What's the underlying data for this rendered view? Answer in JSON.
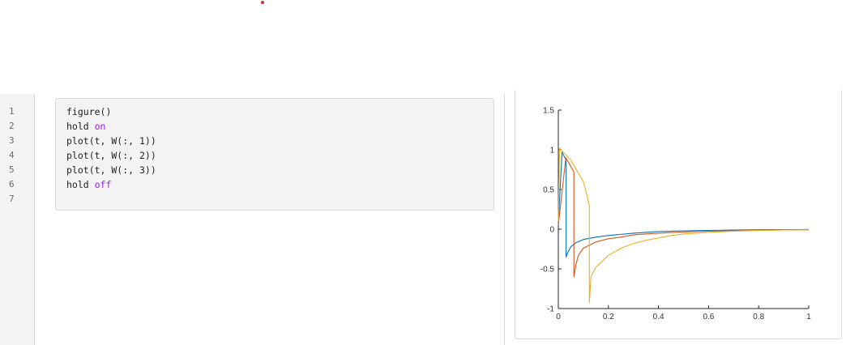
{
  "editor": {
    "line_numbers": [
      "1",
      "2",
      "3",
      "4",
      "5",
      "6",
      "7"
    ],
    "code_lines": [
      {
        "text": "figure()",
        "keyword": ""
      },
      {
        "text": "hold ",
        "keyword": "on"
      },
      {
        "text": "plot(t, W(:, 1))",
        "keyword": ""
      },
      {
        "text": "plot(t, W(:, 2))",
        "keyword": ""
      },
      {
        "text": "plot(t, W(:, 3))",
        "keyword": ""
      },
      {
        "text": "hold ",
        "keyword": "off"
      },
      {
        "text": "",
        "keyword": ""
      }
    ]
  },
  "chart_data": {
    "type": "line",
    "title": "",
    "xlabel": "",
    "ylabel": "",
    "xlim": [
      0,
      1
    ],
    "ylim": [
      -1,
      1.5
    ],
    "xticks": [
      0,
      0.2,
      0.4,
      0.6,
      0.8,
      1
    ],
    "xtick_labels": [
      "0",
      "0.2",
      "0.4",
      "0.6",
      "0.8",
      "1"
    ],
    "yticks": [
      -1,
      -0.5,
      0,
      0.5,
      1,
      1.5
    ],
    "ytick_labels": [
      "-1",
      "-0.5",
      "0",
      "0.5",
      "1",
      "1.5"
    ],
    "grid": false,
    "legend": "none",
    "series": [
      {
        "color": "#0072BD",
        "x": [
          0,
          0.015,
          0.031,
          0.031,
          0.037,
          0.05,
          0.07,
          0.1,
          0.15,
          0.2,
          0.3,
          0.4,
          0.5,
          0.6,
          0.7,
          0.8,
          0.9,
          1.0
        ],
        "y": [
          0.08,
          0.97,
          0.87,
          -0.35,
          -0.3,
          -0.22,
          -0.17,
          -0.13,
          -0.1,
          -0.08,
          -0.05,
          -0.03,
          -0.02,
          -0.015,
          -0.01,
          -0.007,
          -0.005,
          -0.004
        ]
      },
      {
        "color": "#D95319",
        "x": [
          0,
          0.03,
          0.062,
          0.062,
          0.07,
          0.08,
          0.1,
          0.15,
          0.2,
          0.25,
          0.3,
          0.4,
          0.5,
          0.6,
          0.7,
          0.8,
          0.9,
          1.0
        ],
        "y": [
          0.05,
          0.9,
          0.72,
          -0.6,
          -0.45,
          -0.33,
          -0.24,
          -0.16,
          -0.12,
          -0.1,
          -0.07,
          -0.05,
          -0.035,
          -0.025,
          -0.02,
          -0.015,
          -0.01,
          -0.008
        ]
      },
      {
        "color": "#EDB120",
        "x": [
          0,
          0.005,
          0.05,
          0.1,
          0.124,
          0.124,
          0.13,
          0.15,
          0.2,
          0.25,
          0.3,
          0.35,
          0.4,
          0.45,
          0.5,
          0.6,
          0.7,
          0.8,
          0.9,
          1.0
        ],
        "y": [
          0.1,
          1.02,
          0.87,
          0.6,
          0.3,
          -0.93,
          -0.6,
          -0.48,
          -0.33,
          -0.24,
          -0.18,
          -0.14,
          -0.11,
          -0.08,
          -0.06,
          -0.04,
          -0.025,
          -0.015,
          -0.01,
          -0.008
        ]
      }
    ]
  }
}
